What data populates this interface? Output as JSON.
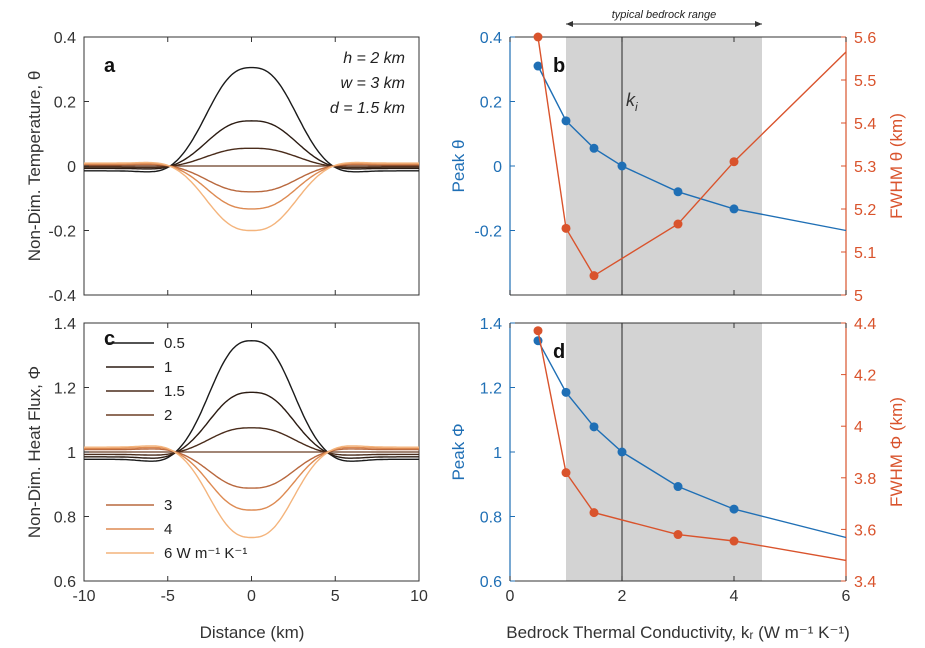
{
  "colors": {
    "blue": "#1f6fb5",
    "orange": "#d9532c",
    "axis": "#333333",
    "shade": "#d3d3d3",
    "kr_palette": [
      "#1a1a1a",
      "#2b1b12",
      "#4a2c1b",
      "#6b3e25",
      "#b8683e",
      "#dd8a52",
      "#f4b47c"
    ]
  },
  "shared": {
    "xlabel_left": "Distance (km)",
    "xlabel_right": "Bedrock Thermal Conductivity, k_r (W m⁻¹ K⁻¹)",
    "typical_range_label": "typical bedrock range",
    "ki_label": "k_i"
  },
  "chart_data": [
    {
      "panel": "a",
      "type": "line",
      "ylabel": "Non-Dim. Temperature, θ",
      "xlim": [
        -10,
        10
      ],
      "ylim": [
        -0.4,
        0.4
      ],
      "xticks": [
        -10,
        -5,
        0,
        5,
        10
      ],
      "yticks": [
        -0.4,
        -0.2,
        0,
        0.2,
        0.4
      ],
      "annotation": [
        "h = 2 km",
        "w =  3 km",
        "d = 1.5 km"
      ],
      "kr_values": [
        0.5,
        1,
        1.5,
        2,
        3,
        4,
        6
      ],
      "peak_values": [
        0.305,
        0.14,
        0.055,
        0,
        -0.08,
        -0.133,
        -0.2
      ],
      "tail_values": [
        -0.02,
        -0.01,
        -0.005,
        0,
        0.005,
        0.008,
        0.012
      ],
      "curve_width_km": 3.2
    },
    {
      "panel": "b",
      "type": "line",
      "xlim": [
        0,
        6
      ],
      "xticks": [
        0,
        2,
        4,
        6
      ],
      "shaded_range": [
        1,
        4.5
      ],
      "ki": 2,
      "left_axis": {
        "label": "Peak θ",
        "ylim": [
          -0.4,
          0.4
        ],
        "yticks": [
          -0.2,
          0,
          0.2,
          0.4
        ]
      },
      "right_axis": {
        "label": "FWHM θ (km)",
        "ylim": [
          5,
          5.6
        ],
        "yticks": [
          5,
          5.1,
          5.2,
          5.3,
          5.4,
          5.5,
          5.6
        ]
      },
      "series": [
        {
          "name": "Peak θ",
          "axis": "left",
          "points_x": [
            0.5,
            1,
            1.5,
            2,
            3,
            4
          ],
          "points_y": [
            0.31,
            0.14,
            0.055,
            0,
            -0.08,
            -0.133
          ],
          "line_x": [
            0.5,
            1,
            1.5,
            2,
            3,
            4,
            6
          ],
          "line_y": [
            0.31,
            0.14,
            0.055,
            0,
            -0.08,
            -0.133,
            -0.2
          ]
        },
        {
          "name": "FWHM θ",
          "axis": "right",
          "points_x": [
            0.5,
            1,
            1.5,
            3,
            4
          ],
          "points_y": [
            5.6,
            5.155,
            5.045,
            5.165,
            5.31
          ],
          "line_x": [
            0.5,
            1,
            1.5,
            3,
            4,
            6
          ],
          "line_y": [
            5.6,
            5.155,
            5.045,
            5.165,
            5.31,
            5.565
          ]
        }
      ]
    },
    {
      "panel": "c",
      "type": "line",
      "ylabel": "Non-Dim. Heat Flux, Φ",
      "xlim": [
        -10,
        10
      ],
      "ylim": [
        0.6,
        1.4
      ],
      "xticks": [
        -10,
        -5,
        0,
        5,
        10
      ],
      "yticks": [
        0.6,
        0.8,
        1,
        1.2,
        1.4
      ],
      "kr_values": [
        0.5,
        1,
        1.5,
        2,
        3,
        4,
        6
      ],
      "legend": [
        "0.5",
        "1",
        "1.5",
        "2",
        "3",
        "4",
        "6 W m⁻¹ K⁻¹"
      ],
      "peak_values": [
        1.345,
        1.185,
        1.075,
        1.0,
        0.888,
        0.82,
        0.735
      ],
      "tail_values": [
        0.97,
        0.98,
        0.99,
        1.0,
        1.01,
        1.015,
        1.02
      ]
    },
    {
      "panel": "d",
      "type": "line",
      "xlim": [
        0,
        6
      ],
      "xticks": [
        0,
        2,
        4,
        6
      ],
      "shaded_range": [
        1,
        4.5
      ],
      "ki": 2,
      "left_axis": {
        "label": "Peak Φ",
        "ylim": [
          0.6,
          1.4
        ],
        "yticks": [
          0.6,
          0.8,
          1,
          1.2,
          1.4
        ]
      },
      "right_axis": {
        "label": "FWHM Φ (km)",
        "ylim": [
          3.4,
          4.4
        ],
        "yticks": [
          3.4,
          3.6,
          3.8,
          4,
          4.2,
          4.4
        ]
      },
      "series": [
        {
          "name": "Peak Φ",
          "axis": "left",
          "points_x": [
            0.5,
            1,
            1.5,
            2,
            3,
            4
          ],
          "points_y": [
            1.345,
            1.185,
            1.078,
            1.0,
            0.893,
            0.823
          ],
          "line_x": [
            0.5,
            1,
            1.5,
            2,
            3,
            4,
            6
          ],
          "line_y": [
            1.345,
            1.185,
            1.078,
            1.0,
            0.893,
            0.823,
            0.735
          ]
        },
        {
          "name": "FWHM Φ",
          "axis": "right",
          "points_x": [
            0.5,
            1,
            1.5,
            3,
            4
          ],
          "points_y": [
            4.37,
            3.82,
            3.665,
            3.58,
            3.555
          ],
          "line_x": [
            0.5,
            1,
            1.5,
            3,
            4,
            6
          ],
          "line_y": [
            4.37,
            3.82,
            3.665,
            3.58,
            3.555,
            3.48
          ]
        }
      ]
    }
  ]
}
